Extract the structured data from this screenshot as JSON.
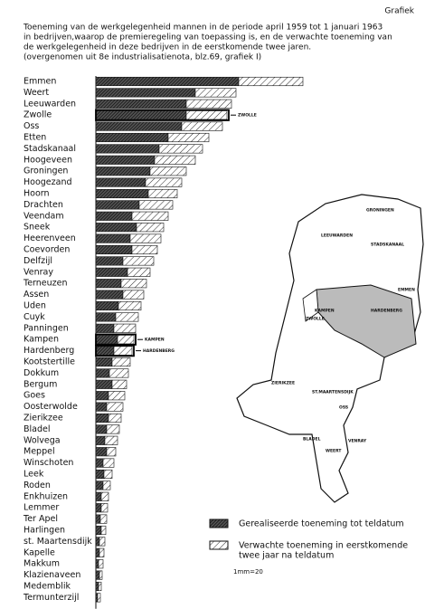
{
  "chart_data": {
    "type": "bar",
    "orientation": "horizontal",
    "stacked": true,
    "header": "Grafiek",
    "title": [
      "Toeneming van de werkgelegenheid  mannen in de periode april 1959 tot 1 januari 1963",
      "in bedrijven,waarop de premieregeling van toepassing is, en de verwachte toeneming van",
      "de werkgelegenheid in deze bedrijven in de eerstkomende twee jaren.",
      "(overgenomen uit 8e industrialisatienota, blz.69, grafiek I)"
    ],
    "categories": [
      "Emmen",
      "Weert",
      "Leeuwarden",
      "Zwolle",
      "Oss",
      "Etten",
      "Stadskanaal",
      "Hoogeveen",
      "Groningen",
      "Hoogezand",
      "Hoorn",
      "Drachten",
      "Veendam",
      "Sneek",
      "Heerenveen",
      "Coevorden",
      "Delfzijl",
      "Venray",
      "Terneuzen",
      "Assen",
      "Uden",
      "Cuyk",
      "Panningen",
      "Kampen",
      "Hardenberg",
      "Kootstertille",
      "Dokkum",
      "Bergum",
      "Goes",
      "Oosterwolde",
      "Zierikzee",
      "Bladel",
      "Wolvega",
      "Meppel",
      "Winschoten",
      "Leek",
      "Roden",
      "Enkhuizen",
      "Lemmer",
      "Ter Apel",
      "Harlingen",
      "st. Maartensdijk",
      "Kapelle",
      "Makkum",
      "Klazienaveen",
      "Medemblik",
      "Termunterzijl"
    ],
    "series": [
      {
        "name": "Gerealiseerde toeneming tot teldatum",
        "color": "#111",
        "hatch": "dense",
        "values": [
          158,
          110,
          100,
          100,
          95,
          80,
          70,
          65,
          60,
          55,
          58,
          48,
          40,
          45,
          38,
          40,
          30,
          35,
          28,
          30,
          25,
          22,
          20,
          24,
          20,
          18,
          15,
          18,
          14,
          12,
          14,
          12,
          10,
          12,
          8,
          9,
          8,
          6,
          6,
          5,
          6,
          4,
          4,
          3,
          4,
          3,
          2
        ]
      },
      {
        "name": [
          "Verwachte toeneming in eerstkomende",
          "twee jaar na teldatum"
        ],
        "color": "#111",
        "hatch": "sparse",
        "values": [
          71,
          45,
          50,
          45,
          45,
          45,
          48,
          45,
          40,
          40,
          32,
          37,
          40,
          30,
          34,
          28,
          34,
          25,
          28,
          23,
          25,
          25,
          24,
          18,
          20,
          20,
          21,
          16,
          18,
          18,
          14,
          14,
          14,
          10,
          12,
          9,
          8,
          8,
          7,
          7,
          5,
          6,
          5,
          5,
          3,
          3,
          3
        ]
      }
    ],
    "annotations": [
      {
        "category": 3,
        "text": "ZWOLLE"
      },
      {
        "category": 23,
        "text": "KAMPEN"
      },
      {
        "category": 24,
        "text": "HARDENBERG"
      }
    ],
    "xlim": [
      0,
      230
    ],
    "scale_note": "1mm=20",
    "map_labels": [
      "KAMPEN",
      "ZWOLLE",
      "HARDENBERG",
      "EMMEN",
      "GRONINGEN",
      "STADSKANAAL",
      "LEEUWARDEN",
      "ZIERIKZEE",
      "ST.MAARTENSDIJK",
      "OSS",
      "BLADEL",
      "VENRAY",
      "WEERT"
    ]
  }
}
